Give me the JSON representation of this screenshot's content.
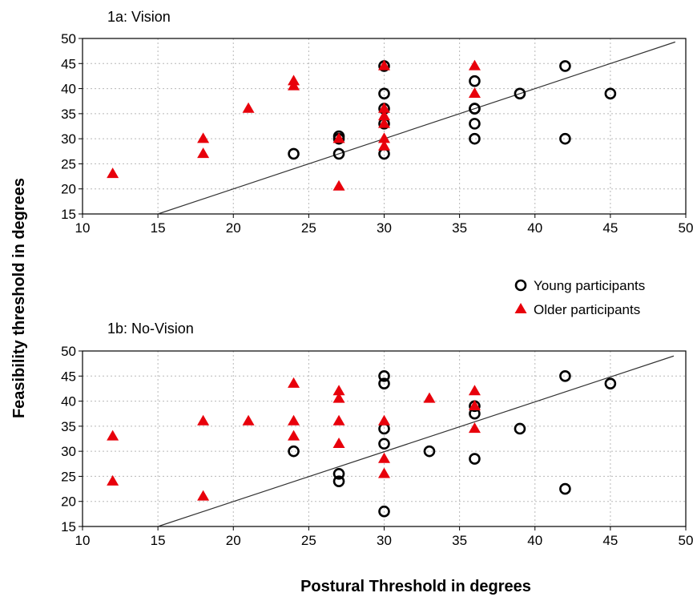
{
  "chart_data": [
    {
      "type": "scatter",
      "title": "1a: Vision",
      "xlabel": "Postural Threshold in degrees",
      "ylabel": "Feasibility threshold in degrees",
      "xlim": [
        10,
        50
      ],
      "ylim": [
        15,
        50
      ],
      "x_ticks": [
        10,
        15,
        20,
        25,
        30,
        35,
        40,
        45,
        50
      ],
      "y_ticks": [
        15,
        20,
        25,
        30,
        35,
        40,
        45,
        50
      ],
      "grid": true,
      "fit_line": {
        "x": [
          15,
          49.3
        ],
        "y": [
          15,
          49.3
        ]
      },
      "series": [
        {
          "name": "Young participants",
          "marker": "open-circle",
          "color": "#000000",
          "points": [
            [
              24,
              27
            ],
            [
              27,
              27
            ],
            [
              27,
              30
            ],
            [
              27,
              30.5
            ],
            [
              30,
              27
            ],
            [
              30,
              33
            ],
            [
              30,
              36
            ],
            [
              30,
              39
            ],
            [
              30,
              44.5
            ],
            [
              36,
              30
            ],
            [
              36,
              33
            ],
            [
              36,
              36
            ],
            [
              36,
              36
            ],
            [
              36,
              41.5
            ],
            [
              39,
              39
            ],
            [
              42,
              30
            ],
            [
              42,
              44.5
            ],
            [
              45,
              39
            ]
          ]
        },
        {
          "name": "Older participants",
          "marker": "filled-triangle",
          "color": "#e8000b",
          "points": [
            [
              12,
              23
            ],
            [
              18,
              27
            ],
            [
              18,
              30
            ],
            [
              21,
              36
            ],
            [
              24,
              40.5
            ],
            [
              24,
              41.5
            ],
            [
              27,
              20.5
            ],
            [
              27,
              30
            ],
            [
              30,
              28.5
            ],
            [
              30,
              30
            ],
            [
              30,
              33
            ],
            [
              30,
              34.5
            ],
            [
              30,
              36
            ],
            [
              30,
              44.5
            ],
            [
              36,
              39
            ],
            [
              36,
              44.5
            ]
          ]
        }
      ]
    },
    {
      "type": "scatter",
      "title": "1b: No-Vision",
      "xlabel": "Postural Threshold in degrees",
      "ylabel": "Feasibility threshold in degrees",
      "xlim": [
        10,
        50
      ],
      "ylim": [
        15,
        50
      ],
      "x_ticks": [
        10,
        15,
        20,
        25,
        30,
        35,
        40,
        45,
        50
      ],
      "y_ticks": [
        15,
        20,
        25,
        30,
        35,
        40,
        45,
        50
      ],
      "grid": true,
      "fit_line": {
        "x": [
          15,
          49.2
        ],
        "y": [
          15,
          49
        ]
      },
      "series": [
        {
          "name": "Young participants",
          "marker": "open-circle",
          "color": "#000000",
          "points": [
            [
              24,
              30
            ],
            [
              27,
              24
            ],
            [
              27,
              25.5
            ],
            [
              30,
              18
            ],
            [
              30,
              31.5
            ],
            [
              30,
              34.5
            ],
            [
              30,
              43.5
            ],
            [
              30,
              45
            ],
            [
              33,
              30
            ],
            [
              36,
              28.5
            ],
            [
              36,
              37.5
            ],
            [
              36,
              39
            ],
            [
              39,
              34.5
            ],
            [
              42,
              22.5
            ],
            [
              42,
              45
            ],
            [
              45,
              43.5
            ]
          ]
        },
        {
          "name": "Older participants",
          "marker": "filled-triangle",
          "color": "#e8000b",
          "points": [
            [
              12,
              24
            ],
            [
              12,
              33
            ],
            [
              18,
              21
            ],
            [
              18,
              36
            ],
            [
              21,
              36
            ],
            [
              24,
              33
            ],
            [
              24,
              36
            ],
            [
              24,
              43.5
            ],
            [
              27,
              31.5
            ],
            [
              27,
              36
            ],
            [
              27,
              40.5
            ],
            [
              27,
              42
            ],
            [
              30,
              25.5
            ],
            [
              30,
              28.5
            ],
            [
              30,
              36
            ],
            [
              33,
              40.5
            ],
            [
              36,
              34.5
            ],
            [
              36,
              39
            ],
            [
              36,
              42
            ]
          ]
        }
      ]
    }
  ],
  "legend": {
    "items": [
      {
        "label": "Young participants",
        "marker": "open-circle"
      },
      {
        "label": "Older participants",
        "marker": "filled-triangle"
      }
    ]
  },
  "shared_ylabel": "Feasibility threshold in degrees",
  "shared_xlabel": "Postural Threshold in degrees"
}
